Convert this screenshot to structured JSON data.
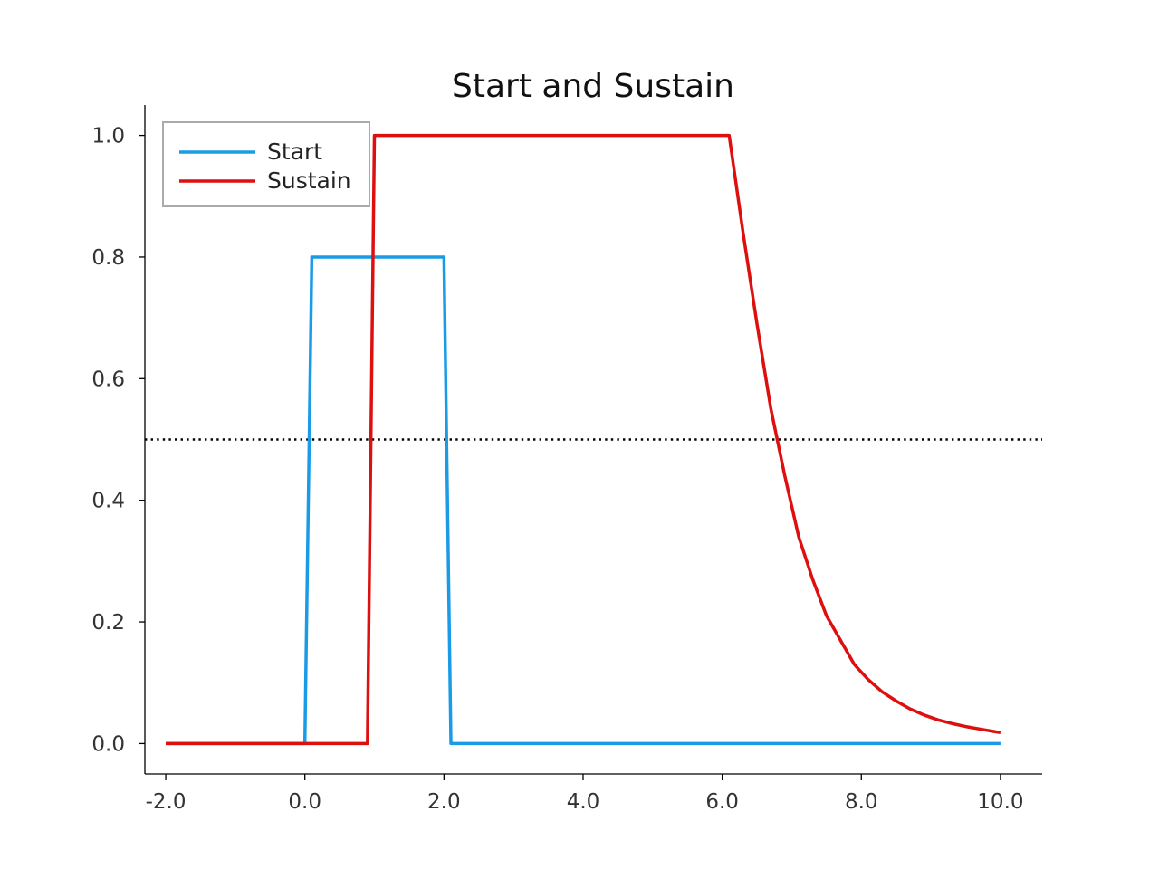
{
  "chart_data": {
    "type": "line",
    "title": "Start and Sustain",
    "xlabel": "",
    "ylabel": "",
    "xlim": [
      -2.3,
      10.6
    ],
    "ylim": [
      -0.05,
      1.05
    ],
    "x_ticks": [
      -2.0,
      0.0,
      2.0,
      4.0,
      6.0,
      8.0,
      10.0
    ],
    "x_tick_labels": [
      "-2.0",
      "0.0",
      "2.0",
      "4.0",
      "6.0",
      "8.0",
      "10.0"
    ],
    "y_ticks": [
      0.0,
      0.2,
      0.4,
      0.6,
      0.8,
      1.0
    ],
    "y_tick_labels": [
      "0.0",
      "0.2",
      "0.4",
      "0.6",
      "0.8",
      "1.0"
    ],
    "grid": false,
    "legend_position": "top-left",
    "reference_line": {
      "y": 0.5,
      "style": "dotted",
      "color": "#000000"
    },
    "series": [
      {
        "name": "Start",
        "color": "#1a9be6",
        "x": [
          -2.0,
          0.0,
          0.1,
          2.0,
          2.1,
          10.0
        ],
        "y": [
          0.0,
          0.0,
          0.8,
          0.8,
          0.0,
          0.0
        ]
      },
      {
        "name": "Sustain",
        "color": "#dd0f0f",
        "x": [
          -2.0,
          0.9,
          1.0,
          6.1,
          6.3,
          6.5,
          6.7,
          6.9,
          7.1,
          7.3,
          7.5,
          7.7,
          7.9,
          8.1,
          8.3,
          8.5,
          8.7,
          8.9,
          9.1,
          9.3,
          9.5,
          9.7,
          9.9,
          10.0
        ],
        "y": [
          0.0,
          0.0,
          1.0,
          1.0,
          0.84,
          0.69,
          0.55,
          0.44,
          0.34,
          0.27,
          0.21,
          0.17,
          0.13,
          0.105,
          0.085,
          0.07,
          0.057,
          0.047,
          0.039,
          0.033,
          0.028,
          0.024,
          0.02,
          0.018
        ]
      }
    ]
  }
}
